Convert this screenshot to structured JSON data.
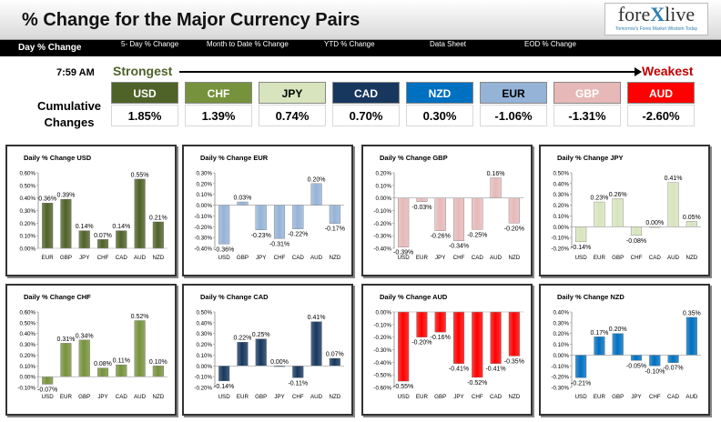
{
  "header": {
    "title": "% Change for the Major Currency Pairs",
    "logo_main_a": "fore",
    "logo_main_x": "X",
    "logo_main_b": "live",
    "logo_sub": "Tomorrow's Forex Market Wisdom Today"
  },
  "tabs": [
    {
      "label": "Day % Change",
      "active": true
    },
    {
      "label": "5- Day % Change",
      "active": false
    },
    {
      "label": "Month to Date % Change",
      "active": false
    },
    {
      "label": "YTD % Change",
      "active": false
    },
    {
      "label": "Data Sheet",
      "active": false
    },
    {
      "label": "EOD % Change",
      "active": false
    }
  ],
  "summary": {
    "time": "7:59 AM",
    "strongest_label": "Strongest",
    "weakest_label": "Weakest",
    "cumulative_label_1": "Cumulative",
    "cumulative_label_2": "Changes",
    "currencies": [
      {
        "name": "USD",
        "value": "1.85%",
        "color": "#4f6228",
        "text": "#ffffff"
      },
      {
        "name": "CHF",
        "value": "1.39%",
        "color": "#76923c",
        "text": "#ffffff"
      },
      {
        "name": "JPY",
        "value": "0.74%",
        "color": "#d7e4bd",
        "text": "#000000"
      },
      {
        "name": "CAD",
        "value": "0.70%",
        "color": "#17375e",
        "text": "#ffffff"
      },
      {
        "name": "NZD",
        "value": "0.30%",
        "color": "#0070c0",
        "text": "#ffffff"
      },
      {
        "name": "EUR",
        "value": "-1.06%",
        "color": "#95b3d7",
        "text": "#000000"
      },
      {
        "name": "GBP",
        "value": "-1.31%",
        "color": "#e6b9b8",
        "text": "#ffffff"
      },
      {
        "name": "AUD",
        "value": "-2.60%",
        "color": "#ff0000",
        "text": "#ffffff"
      }
    ]
  },
  "chart_data": [
    {
      "type": "bar",
      "title": "Daily % Change USD",
      "color": "#4f6228",
      "categories": [
        "EUR",
        "GBP",
        "JPY",
        "CHF",
        "CAD",
        "AUD",
        "NZD"
      ],
      "values": [
        0.36,
        0.39,
        0.14,
        0.07,
        0.14,
        0.55,
        0.21
      ],
      "labels": [
        "0.36%",
        "0.39%",
        "0.14%",
        "0.07%",
        "0.14%",
        "0.55%",
        "0.21%"
      ],
      "ylim": [
        0,
        0.6
      ],
      "step": 0.1,
      "ticks": [
        "0.00%",
        "0.10%",
        "0.20%",
        "0.30%",
        "0.40%",
        "0.50%",
        "0.60%"
      ]
    },
    {
      "type": "bar",
      "title": "Daily % Change EUR",
      "color": "#95b3d7",
      "categories": [
        "USD",
        "GBP",
        "JPY",
        "CHF",
        "CAD",
        "AUD",
        "NZD"
      ],
      "values": [
        -0.36,
        0.03,
        -0.23,
        -0.31,
        -0.22,
        0.2,
        -0.17
      ],
      "labels": [
        "-0.36%",
        "0.03%",
        "-0.23%",
        "-0.31%",
        "-0.22%",
        "0.20%",
        "-0.17%"
      ],
      "ylim": [
        -0.4,
        0.3
      ],
      "step": 0.1,
      "ticks": [
        "-0.40%",
        "-0.30%",
        "-0.20%",
        "-0.10%",
        "0.00%",
        "0.10%",
        "0.20%",
        "0.30%"
      ]
    },
    {
      "type": "bar",
      "title": "Daily % Change GBP",
      "color": "#e6b9b8",
      "categories": [
        "USD",
        "EUR",
        "JPY",
        "CHF",
        "CAD",
        "AUD",
        "NZD"
      ],
      "values": [
        -0.39,
        -0.03,
        -0.26,
        -0.34,
        -0.25,
        0.16,
        -0.2
      ],
      "labels": [
        "-0.39%",
        "-0.03%",
        "-0.26%",
        "-0.34%",
        "-0.25%",
        "0.16%",
        "-0.20%"
      ],
      "ylim": [
        -0.4,
        0.2
      ],
      "step": 0.1,
      "ticks": [
        "-0.40%",
        "-0.30%",
        "-0.20%",
        "-0.10%",
        "0.00%",
        "0.10%",
        "0.20%"
      ]
    },
    {
      "type": "bar",
      "title": "Daily % Change JPY",
      "color": "#d7e4bd",
      "categories": [
        "USD",
        "EUR",
        "GBP",
        "CHF",
        "CAD",
        "AUD",
        "NZD"
      ],
      "values": [
        -0.14,
        0.23,
        0.26,
        -0.08,
        0.0,
        0.41,
        0.05
      ],
      "labels": [
        "-0.14%",
        "0.23%",
        "0.26%",
        "-0.08%",
        "0.00%",
        "0.41%",
        "0.05%"
      ],
      "ylim": [
        -0.2,
        0.5
      ],
      "step": 0.1,
      "ticks": [
        "-0.20%",
        "-0.10%",
        "0.00%",
        "0.10%",
        "0.20%",
        "0.30%",
        "0.40%",
        "0.50%"
      ]
    },
    {
      "type": "bar",
      "title": "Daily % Change CHF",
      "color": "#76923c",
      "categories": [
        "USD",
        "EUR",
        "GBP",
        "JPY",
        "CAD",
        "AUD",
        "NZD"
      ],
      "values": [
        -0.07,
        0.31,
        0.34,
        0.08,
        0.11,
        0.52,
        0.1
      ],
      "labels": [
        "-0.07%",
        "0.31%",
        "0.34%",
        "0.08%",
        "0.11%",
        "0.52%",
        "0.10%"
      ],
      "ylim": [
        -0.1,
        0.6
      ],
      "step": 0.1,
      "ticks": [
        "-0.10%",
        "0.00%",
        "0.10%",
        "0.20%",
        "0.30%",
        "0.40%",
        "0.50%",
        "0.60%"
      ]
    },
    {
      "type": "bar",
      "title": "Daily % Change CAD",
      "color": "#17375e",
      "categories": [
        "USD",
        "EUR",
        "GBP",
        "JPY",
        "CHF",
        "AUD",
        "NZD"
      ],
      "values": [
        -0.14,
        0.22,
        0.25,
        0.0,
        -0.11,
        0.41,
        0.07
      ],
      "labels": [
        "-0.14%",
        "0.22%",
        "0.25%",
        "0.00%",
        "-0.11%",
        "0.41%",
        "0.07%"
      ],
      "ylim": [
        -0.2,
        0.5
      ],
      "step": 0.1,
      "ticks": [
        "-0.20%",
        "-0.10%",
        "0.00%",
        "0.10%",
        "0.20%",
        "0.30%",
        "0.40%",
        "0.50%"
      ]
    },
    {
      "type": "bar",
      "title": "Daily % Change AUD",
      "color": "#ff0000",
      "categories": [
        "USD",
        "EUR",
        "GBP",
        "JPY",
        "CHF",
        "CAD",
        "NZD"
      ],
      "values": [
        -0.55,
        -0.2,
        -0.16,
        -0.41,
        -0.52,
        -0.41,
        -0.35
      ],
      "labels": [
        "-0.55%",
        "-0.20%",
        "-0.16%",
        "-0.41%",
        "-0.52%",
        "-0.41%",
        "-0.35%"
      ],
      "ylim": [
        -0.6,
        0.0
      ],
      "step": 0.1,
      "ticks": [
        "-0.60%",
        "-0.50%",
        "-0.40%",
        "-0.30%",
        "-0.20%",
        "-0.10%",
        "0.00%"
      ]
    },
    {
      "type": "bar",
      "title": "Daily % Change NZD",
      "color": "#0070c0",
      "categories": [
        "USD",
        "EUR",
        "GBP",
        "JPY",
        "CHF",
        "CAD",
        "AUD"
      ],
      "values": [
        -0.21,
        0.17,
        0.2,
        -0.05,
        -0.1,
        -0.07,
        0.35
      ],
      "labels": [
        "-0.21%",
        "0.17%",
        "0.20%",
        "-0.05%",
        "-0.10%",
        "-0.07%",
        "0.35%"
      ],
      "ylim": [
        -0.3,
        0.4
      ],
      "step": 0.1,
      "ticks": [
        "-0.30%",
        "-0.20%",
        "-0.10%",
        "0.00%",
        "0.10%",
        "0.20%",
        "0.30%",
        "0.40%"
      ]
    }
  ]
}
